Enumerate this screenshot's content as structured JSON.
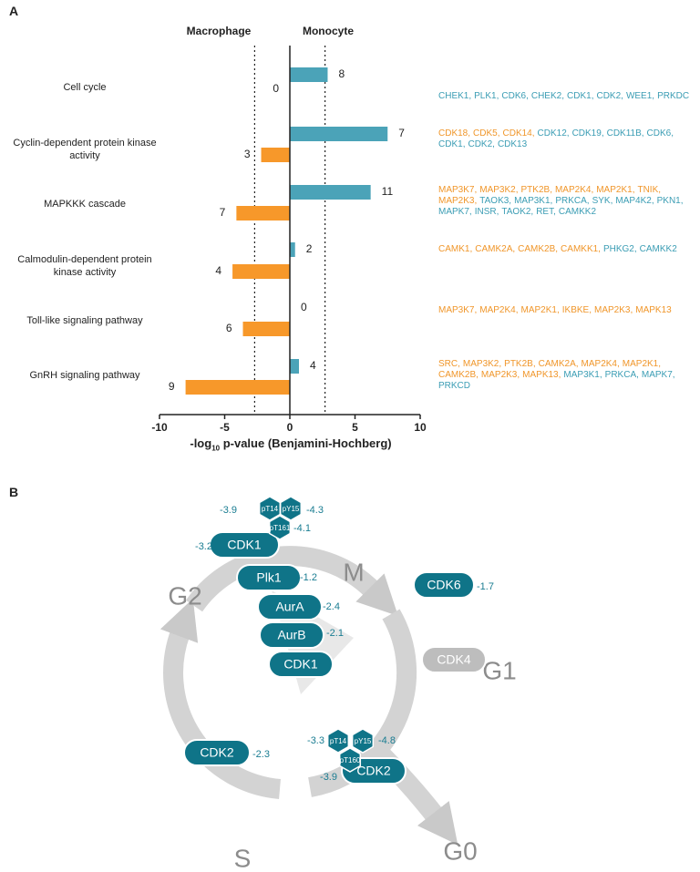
{
  "panels": [
    "A",
    "B"
  ],
  "chart_data": {
    "type": "diverging-bar",
    "categories": [
      "Cell cycle",
      "Cyclin-dependent protein kinase activity",
      "MAPKKK cascade",
      "Calmodulin-dependent protein kinase activity",
      "Toll-like signaling pathway",
      "GnRH signaling pathway"
    ],
    "series": [
      {
        "name": "Macrophage",
        "color": "#f7982a",
        "gene_color": "#f0962a",
        "values": [
          0,
          -2.2,
          -4.1,
          -4.4,
          -3.6,
          -8.0
        ],
        "counts": [
          0,
          3,
          7,
          4,
          6,
          9
        ],
        "genes": [
          [],
          [
            "CDK18",
            "CDK5",
            "CDK14"
          ],
          [
            "MAP3K7",
            "MAP3K2",
            "PTK2B",
            "MAP2K4",
            "MAP2K1",
            "TNIK",
            "MAP2K3"
          ],
          [
            "CAMK1",
            "CAMK2A",
            "CAMK2B",
            "CAMKK1"
          ],
          [
            "MAP3K7",
            "MAP2K4",
            "MAP2K1",
            "IKBKE",
            "MAP2K3",
            "MAPK13"
          ],
          [
            "SRC",
            "MAP3K2",
            "PTK2B",
            "CAMK2A",
            "MAP2K4",
            "MAP2K1",
            "CAMK2B",
            "MAP2K3",
            "MAPK13"
          ]
        ]
      },
      {
        "name": "Monocyte",
        "color": "#4ba3b8",
        "gene_color": "#3b9db4",
        "values": [
          2.9,
          7.5,
          6.2,
          0.4,
          0,
          0.7
        ],
        "counts": [
          8,
          7,
          11,
          2,
          0,
          4
        ],
        "genes": [
          [
            "CHEK1",
            "PLK1",
            "CDK6",
            "CHEK2",
            "CDK1",
            "CDK2",
            "WEE1",
            "PRKDC"
          ],
          [
            "CDK12",
            "CDK19",
            "CDK11B",
            "CDK6",
            "CDK1",
            "CDK2",
            "CDK13"
          ],
          [
            "TAOK3",
            "MAP3K1",
            "PRKCA",
            "SYK",
            "MAP4K2",
            "PKN1",
            "MAPK7",
            "INSR",
            "TAOK2",
            "RET",
            "CAMKK2"
          ],
          [
            "PHKG2",
            "CAMKK2"
          ],
          [],
          [
            "MAP3K1",
            "PRKCA",
            "MAPK7",
            "PRKCD"
          ]
        ]
      }
    ],
    "xlabel": {
      "prefix": "-log",
      "subscript": "10",
      "suffix": " p-value (Benjamini-Hochberg)"
    },
    "xlim": [
      -10,
      10
    ],
    "xticks": [
      -10,
      -5,
      0,
      5,
      10
    ],
    "reference_lines": [
      -2.7,
      2.7
    ]
  },
  "diagram": {
    "phases": [
      "M",
      "G1",
      "G0",
      "S",
      "G2"
    ],
    "nodes": [
      {
        "label": "CDK1",
        "value": -3.2,
        "color": "#0f7488",
        "sites": [
          {
            "label": "pT14",
            "value": -3.9
          },
          {
            "label": "pY15",
            "value": -4.3
          },
          {
            "label": "pT161",
            "value": -4.1
          }
        ]
      },
      {
        "label": "Plk1",
        "value": -1.2,
        "color": "#0f7488"
      },
      {
        "label": "AurA",
        "value": -2.4,
        "color": "#0f7488"
      },
      {
        "label": "AurB",
        "value": -2.1,
        "color": "#0f7488"
      },
      {
        "label": "CDK1",
        "color": "#0f7488"
      },
      {
        "label": "CDK6",
        "value": -1.7,
        "color": "#0f7488"
      },
      {
        "label": "CDK4",
        "color": "#bdbdbd"
      },
      {
        "label": "CDK2",
        "value": -2.3,
        "color": "#0f7488"
      },
      {
        "label": "CDK2",
        "color": "#0f7488",
        "sites": [
          {
            "label": "pT14",
            "value": -3.3
          },
          {
            "label": "pY15",
            "value": -4.8
          },
          {
            "label": "pT160",
            "value": -3.9
          }
        ]
      }
    ]
  }
}
